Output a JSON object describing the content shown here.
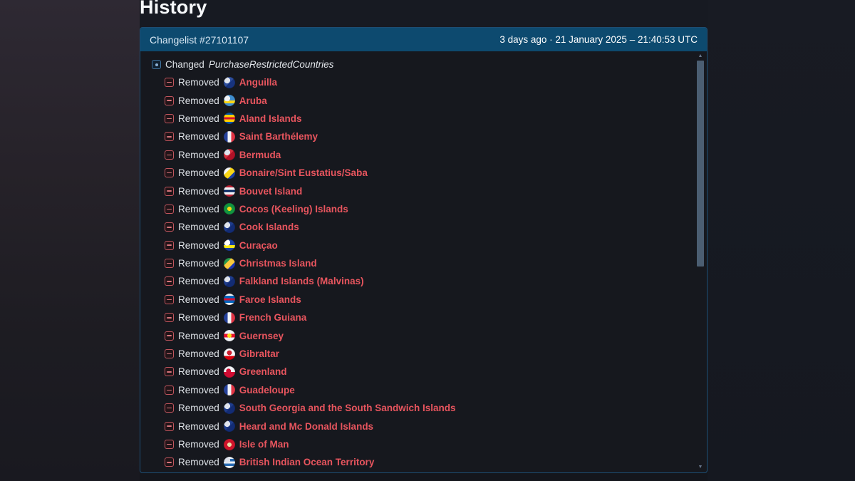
{
  "page": {
    "title": "History"
  },
  "changelist": {
    "title": "Changelist #27101107",
    "timestamp": "3 days ago · 21 January 2025 – 21:40:53 UTC"
  },
  "change": {
    "verb": "Changed",
    "field": "PurchaseRestrictedCountries"
  },
  "labels": {
    "removed": "Removed"
  },
  "icons": {
    "scroll_up": "▲",
    "scroll_down": "▼",
    "changed": "modified-square-icon",
    "removed": "minus-square-icon"
  },
  "colors": {
    "header_bg": "#0d4a6f",
    "panel_border": "#1d4e74",
    "panel_bg": "#16181e",
    "country_link": "#e8555e",
    "removed_icon": "#c2565e",
    "changed_icon": "#41749f",
    "scroll_thumb": "#4b5e72",
    "text": "#e0e4e9"
  },
  "countries": [
    {
      "name": "Anguilla",
      "flag": {
        "dir": "135deg",
        "stripes": [
          "#2e4f9e",
          "#17337e"
        ],
        "emblem": "#dfe4ee",
        "emblem_pos": "30% 30%"
      }
    },
    {
      "name": "Aruba",
      "flag": {
        "dir": "180deg",
        "stripes": [
          "#3f8ed0",
          "#3f8ed0",
          "#f9d616",
          "#3f8ed0"
        ],
        "emblem": "#f0f3f7",
        "emblem_pos": "30% 32%"
      }
    },
    {
      "name": "Aland Islands",
      "flag": {
        "dir": "180deg",
        "stripes": [
          "#0053a5",
          "#ffce00",
          "#d21034",
          "#ffce00",
          "#0053a5"
        ],
        "emblem": null,
        "emblem_pos": null
      }
    },
    {
      "name": "Saint Barthélemy",
      "flag": {
        "dir": "90deg",
        "stripes": [
          "#26429c",
          "#f2f4f8",
          "#e03445"
        ],
        "emblem": null,
        "emblem_pos": null
      }
    },
    {
      "name": "Bermuda",
      "flag": {
        "dir": "135deg",
        "stripes": [
          "#d5313f",
          "#b01127"
        ],
        "emblem": "#dfe4ee",
        "emblem_pos": "30% 30%"
      }
    },
    {
      "name": "Bonaire/Sint Eustatius/Saba",
      "flag": {
        "dir": "135deg",
        "stripes": [
          "#f2f4f8",
          "#f9d616",
          "#1e3f9e"
        ],
        "emblem": null,
        "emblem_pos": null
      }
    },
    {
      "name": "Bouvet Island",
      "flag": {
        "dir": "180deg",
        "stripes": [
          "#ba2234",
          "#f2f4f8",
          "#00205b",
          "#f2f4f8",
          "#ba2234"
        ],
        "emblem": null,
        "emblem_pos": null
      }
    },
    {
      "name": "Cocos (Keeling) Islands",
      "flag": {
        "dir": "180deg",
        "stripes": [
          "#12933f",
          "#12933f"
        ],
        "emblem": "#f9d616",
        "emblem_pos": "50% 50%"
      }
    },
    {
      "name": "Cook Islands",
      "flag": {
        "dir": "135deg",
        "stripes": [
          "#1f3d8c",
          "#132c74"
        ],
        "emblem": "#dfe4ee",
        "emblem_pos": "30% 30%"
      }
    },
    {
      "name": "Curaçao",
      "flag": {
        "dir": "180deg",
        "stripes": [
          "#1b3f9e",
          "#1b3f9e",
          "#f9e814",
          "#1b3f9e"
        ],
        "emblem": "#ffffff",
        "emblem_pos": "30% 28%"
      }
    },
    {
      "name": "Christmas Island",
      "flag": {
        "dir": "135deg",
        "stripes": [
          "#28984c",
          "#f9c93d",
          "#1b35ad"
        ],
        "emblem": null,
        "emblem_pos": null
      }
    },
    {
      "name": "Falkland Islands (Malvinas)",
      "flag": {
        "dir": "135deg",
        "stripes": [
          "#1f3d8c",
          "#132c74"
        ],
        "emblem": "#dfe4ee",
        "emblem_pos": "30% 30%"
      }
    },
    {
      "name": "Faroe Islands",
      "flag": {
        "dir": "180deg",
        "stripes": [
          "#f2f4f8",
          "#0065bd",
          "#d21034",
          "#0065bd",
          "#f2f4f8"
        ],
        "emblem": null,
        "emblem_pos": null
      }
    },
    {
      "name": "French Guiana",
      "flag": {
        "dir": "90deg",
        "stripes": [
          "#26429c",
          "#f2f4f8",
          "#e03445"
        ],
        "emblem": null,
        "emblem_pos": null
      }
    },
    {
      "name": "Guernsey",
      "flag": {
        "dir": "180deg",
        "stripes": [
          "#f2f4f8",
          "#e8112d",
          "#f2f4f8"
        ],
        "emblem": "#f9dd16",
        "emblem_pos": "50% 50%"
      }
    },
    {
      "name": "Gibraltar",
      "flag": {
        "dir": "180deg",
        "stripes": [
          "#f4f6f8",
          "#f4f6f8",
          "#da000c"
        ],
        "emblem": "#cf1f2f",
        "emblem_pos": "50% 38%"
      }
    },
    {
      "name": "Greenland",
      "flag": {
        "dir": "180deg",
        "stripes": [
          "#f2f4f8",
          "#d00c33"
        ],
        "emblem": "#d00c33",
        "emblem_pos": "42% 42%"
      }
    },
    {
      "name": "Guadeloupe",
      "flag": {
        "dir": "90deg",
        "stripes": [
          "#26429c",
          "#f2f4f8",
          "#e03445"
        ],
        "emblem": null,
        "emblem_pos": null
      }
    },
    {
      "name": "South Georgia and the South Sandwich Islands",
      "flag": {
        "dir": "135deg",
        "stripes": [
          "#1f3d8c",
          "#132c74"
        ],
        "emblem": "#dfe4ee",
        "emblem_pos": "30% 30%"
      }
    },
    {
      "name": "Heard and Mc Donald Islands",
      "flag": {
        "dir": "135deg",
        "stripes": [
          "#1f3d8c",
          "#132c74"
        ],
        "emblem": "#dfe4ee",
        "emblem_pos": "30% 30%"
      }
    },
    {
      "name": "Isle of Man",
      "flag": {
        "dir": "180deg",
        "stripes": [
          "#cf142b",
          "#cf142b"
        ],
        "emblem": "#e8dca8",
        "emblem_pos": "50% 50%"
      }
    },
    {
      "name": "British Indian Ocean Territory",
      "flag": {
        "dir": "180deg",
        "stripes": [
          "#eef2f6",
          "#2a6db5",
          "#eef2f6",
          "#2a6db5",
          "#eef2f6"
        ],
        "emblem": "#dfe4ee",
        "emblem_pos": "30% 30%"
      }
    }
  ]
}
